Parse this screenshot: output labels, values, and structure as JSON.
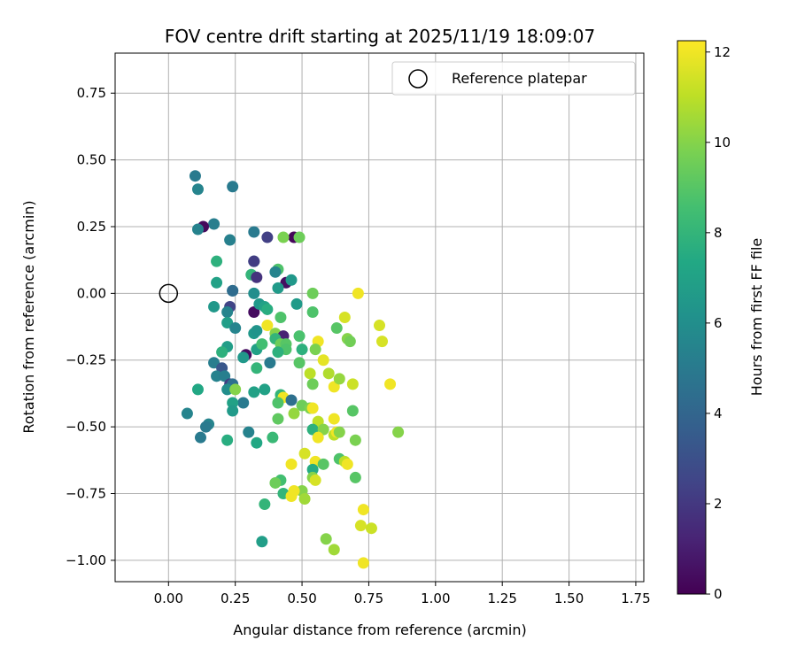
{
  "chart_data": {
    "type": "scatter",
    "title": "FOV centre drift starting at 2025/11/19 18:09:07",
    "xlabel": "Angular distance from reference (arcmin)",
    "ylabel": "Rotation from reference (arcmin)",
    "xlim": [
      -0.2,
      1.78
    ],
    "ylim": [
      -1.08,
      0.9
    ],
    "xticks": [
      "0.00",
      "0.25",
      "0.50",
      "0.75",
      "1.00",
      "1.25",
      "1.50",
      "1.75"
    ],
    "xtick_values": [
      0,
      0.25,
      0.5,
      0.75,
      1.0,
      1.25,
      1.5,
      1.75
    ],
    "yticks": [
      "0.75",
      "0.50",
      "0.25",
      "0.00",
      "−0.25",
      "−0.50",
      "−0.75",
      "−1.00"
    ],
    "ytick_values": [
      0.75,
      0.5,
      0.25,
      0,
      -0.25,
      -0.5,
      -0.75,
      -1.0
    ],
    "grid": true,
    "legend": {
      "placement": "top-right",
      "entries": [
        {
          "label": "Reference platepar",
          "marker": "open-circle"
        }
      ]
    },
    "reference_point": {
      "x": 0.0,
      "y": 0.0
    },
    "colorbar": {
      "label": "Hours from first FF file",
      "colormap": "viridis",
      "range": [
        0,
        12.25
      ],
      "ticks": [
        0,
        2,
        4,
        6,
        8,
        10,
        12
      ],
      "tick_labels": [
        "0",
        "2",
        "4",
        "6",
        "8",
        "10",
        "12"
      ]
    },
    "points": [
      [
        0.1,
        0.44,
        5.0
      ],
      [
        0.11,
        0.39,
        5.5
      ],
      [
        0.24,
        0.4,
        5.0
      ],
      [
        0.17,
        0.26,
        5.2
      ],
      [
        0.13,
        0.25,
        0.3
      ],
      [
        0.11,
        0.24,
        5.4
      ],
      [
        0.23,
        0.2,
        5.3
      ],
      [
        0.32,
        0.23,
        5.0
      ],
      [
        0.37,
        0.21,
        2.3
      ],
      [
        0.47,
        0.21,
        0.2
      ],
      [
        0.43,
        0.21,
        9.8
      ],
      [
        0.49,
        0.21,
        9.5
      ],
      [
        0.32,
        0.12,
        4.0
      ],
      [
        0.32,
        0.12,
        2.2
      ],
      [
        0.18,
        0.12,
        7.8
      ],
      [
        0.41,
        0.09,
        8.8
      ],
      [
        0.4,
        0.08,
        5.5
      ],
      [
        0.31,
        0.07,
        8.0
      ],
      [
        0.33,
        0.06,
        1.8
      ],
      [
        0.44,
        0.04,
        0.5
      ],
      [
        0.46,
        0.05,
        6.5
      ],
      [
        0.18,
        0.04,
        7.0
      ],
      [
        0.24,
        0.01,
        5.5
      ],
      [
        0.24,
        0.01,
        4.3
      ],
      [
        0.41,
        0.02,
        6.6
      ],
      [
        0.32,
        0.0,
        6.0
      ],
      [
        0.54,
        0.0,
        9.5
      ],
      [
        0.71,
        0.0,
        12.0
      ],
      [
        0.17,
        -0.05,
        6.5
      ],
      [
        0.23,
        -0.05,
        2.5
      ],
      [
        0.22,
        -0.07,
        5.5
      ],
      [
        0.32,
        -0.07,
        0.4
      ],
      [
        0.34,
        -0.04,
        6.5
      ],
      [
        0.36,
        -0.05,
        7.0
      ],
      [
        0.37,
        -0.06,
        7.6
      ],
      [
        0.48,
        -0.04,
        6.6
      ],
      [
        0.54,
        -0.07,
        8.8
      ],
      [
        0.42,
        -0.09,
        8.8
      ],
      [
        0.66,
        -0.09,
        11.5
      ],
      [
        0.22,
        -0.11,
        6.8
      ],
      [
        0.25,
        -0.13,
        5.5
      ],
      [
        0.32,
        -0.15,
        6.5
      ],
      [
        0.33,
        -0.14,
        6.3
      ],
      [
        0.37,
        -0.12,
        12.0
      ],
      [
        0.4,
        -0.15,
        10.0
      ],
      [
        0.43,
        -0.16,
        1.2
      ],
      [
        0.4,
        -0.17,
        8.0
      ],
      [
        0.49,
        -0.16,
        8.7
      ],
      [
        0.63,
        -0.13,
        9.0
      ],
      [
        0.67,
        -0.17,
        10.0
      ],
      [
        0.68,
        -0.18,
        9.6
      ],
      [
        0.79,
        -0.12,
        11.5
      ],
      [
        0.8,
        -0.18,
        11.5
      ],
      [
        0.56,
        -0.18,
        12.0
      ],
      [
        0.42,
        -0.19,
        9.5
      ],
      [
        0.44,
        -0.19,
        9.0
      ],
      [
        0.22,
        -0.2,
        6.8
      ],
      [
        0.33,
        -0.21,
        7.0
      ],
      [
        0.35,
        -0.19,
        8.5
      ],
      [
        0.44,
        -0.21,
        8.8
      ],
      [
        0.41,
        -0.22,
        7.8
      ],
      [
        0.5,
        -0.21,
        7.8
      ],
      [
        0.55,
        -0.21,
        9.8
      ],
      [
        0.2,
        -0.22,
        7.8
      ],
      [
        0.29,
        -0.23,
        0.4
      ],
      [
        0.28,
        -0.24,
        6.5
      ],
      [
        0.38,
        -0.26,
        5.0
      ],
      [
        0.49,
        -0.26,
        9.0
      ],
      [
        0.58,
        -0.25,
        11.8
      ],
      [
        0.17,
        -0.26,
        5.2
      ],
      [
        0.2,
        -0.28,
        3.3
      ],
      [
        0.33,
        -0.28,
        8.0
      ],
      [
        0.53,
        -0.3,
        11.0
      ],
      [
        0.6,
        -0.3,
        10.8
      ],
      [
        0.18,
        -0.31,
        5.4
      ],
      [
        0.21,
        -0.31,
        5.2
      ],
      [
        0.23,
        -0.34,
        2.2
      ],
      [
        0.24,
        -0.34,
        4.5
      ],
      [
        0.54,
        -0.34,
        9.5
      ],
      [
        0.62,
        -0.35,
        12.0
      ],
      [
        0.64,
        -0.32,
        10.3
      ],
      [
        0.69,
        -0.34,
        11.3
      ],
      [
        0.83,
        -0.34,
        12.0
      ],
      [
        0.11,
        -0.36,
        7.3
      ],
      [
        0.22,
        -0.36,
        6.0
      ],
      [
        0.25,
        -0.36,
        10.0
      ],
      [
        0.32,
        -0.37,
        7.0
      ],
      [
        0.36,
        -0.36,
        7.0
      ],
      [
        0.42,
        -0.38,
        8.0
      ],
      [
        0.43,
        -0.39,
        12.0
      ],
      [
        0.46,
        -0.4,
        4.5
      ],
      [
        0.28,
        -0.41,
        5.0
      ],
      [
        0.24,
        -0.41,
        7.0
      ],
      [
        0.24,
        -0.44,
        6.6
      ],
      [
        0.41,
        -0.41,
        8.8
      ],
      [
        0.5,
        -0.42,
        9.5
      ],
      [
        0.53,
        -0.43,
        9.8
      ],
      [
        0.54,
        -0.43,
        12.0
      ],
      [
        0.47,
        -0.45,
        10.3
      ],
      [
        0.07,
        -0.45,
        5.5
      ],
      [
        0.69,
        -0.44,
        9.0
      ],
      [
        0.41,
        -0.47,
        9.2
      ],
      [
        0.56,
        -0.48,
        11.0
      ],
      [
        0.62,
        -0.47,
        12.0
      ],
      [
        0.15,
        -0.49,
        5.5
      ],
      [
        0.14,
        -0.5,
        5.0
      ],
      [
        0.12,
        -0.54,
        5.0
      ],
      [
        0.3,
        -0.52,
        5.4
      ],
      [
        0.54,
        -0.51,
        7.8
      ],
      [
        0.58,
        -0.51,
        10.0
      ],
      [
        0.62,
        -0.53,
        11.0
      ],
      [
        0.63,
        -0.52,
        12.0
      ],
      [
        0.64,
        -0.52,
        10.0
      ],
      [
        0.86,
        -0.52,
        10.0
      ],
      [
        0.22,
        -0.55,
        7.6
      ],
      [
        0.33,
        -0.56,
        7.3
      ],
      [
        0.39,
        -0.54,
        8.2
      ],
      [
        0.56,
        -0.54,
        12.0
      ],
      [
        0.64,
        -0.62,
        8.8
      ],
      [
        0.7,
        -0.55,
        9.8
      ],
      [
        0.51,
        -0.6,
        11.5
      ],
      [
        0.55,
        -0.63,
        12.0
      ],
      [
        0.46,
        -0.64,
        12.0
      ],
      [
        0.54,
        -0.66,
        7.5
      ],
      [
        0.58,
        -0.64,
        9.0
      ],
      [
        0.66,
        -0.63,
        11.0
      ],
      [
        0.67,
        -0.64,
        12.0
      ],
      [
        0.54,
        -0.69,
        10.0
      ],
      [
        0.55,
        -0.7,
        11.5
      ],
      [
        0.42,
        -0.7,
        8.5
      ],
      [
        0.4,
        -0.71,
        9.5
      ],
      [
        0.7,
        -0.69,
        9.0
      ],
      [
        0.43,
        -0.75,
        8.0
      ],
      [
        0.5,
        -0.74,
        10.0
      ],
      [
        0.51,
        -0.77,
        10.5
      ],
      [
        0.47,
        -0.74,
        12.0
      ],
      [
        0.46,
        -0.76,
        12.0
      ],
      [
        0.36,
        -0.79,
        8.0
      ],
      [
        0.73,
        -0.81,
        12.0
      ],
      [
        0.72,
        -0.87,
        11.5
      ],
      [
        0.76,
        -0.88,
        11.3
      ],
      [
        0.59,
        -0.92,
        10.0
      ],
      [
        0.62,
        -0.96,
        10.5
      ],
      [
        0.35,
        -0.93,
        6.8
      ],
      [
        0.73,
        -1.01,
        12.0
      ]
    ]
  }
}
